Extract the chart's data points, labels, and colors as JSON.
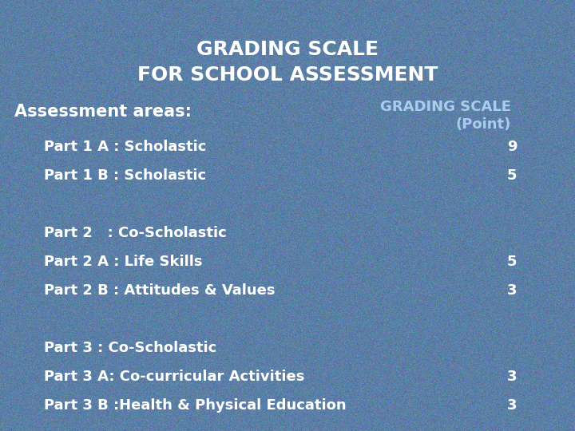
{
  "title_line1": "GRADING SCALE",
  "title_line2": "FOR SCHOOL ASSESSMENT",
  "bg_color": "#5b7fa6",
  "text_color": "#ffffff",
  "header_left": "Assessment areas:",
  "header_right_line1": "GRADING SCALE",
  "header_right_line2": "(Point)",
  "rows": [
    {
      "label": "Part 1 A : Scholastic",
      "value": "9"
    },
    {
      "label": "Part 1 B : Scholastic",
      "value": "5"
    },
    {
      "label": "",
      "value": ""
    },
    {
      "label": "Part 2   : Co-Scholastic",
      "value": ""
    },
    {
      "label": "Part 2 A : Life Skills",
      "value": "5"
    },
    {
      "label": "Part 2 B : Attitudes & Values",
      "value": "3"
    },
    {
      "label": "",
      "value": ""
    },
    {
      "label": "Part 3 : Co-Scholastic",
      "value": ""
    },
    {
      "label": "Part 3 A: Co-curricular Activities",
      "value": "3"
    },
    {
      "label": "Part 3 B :Health & Physical Education",
      "value": "3"
    }
  ],
  "title_fontsize": 18,
  "header_fontsize": 14,
  "row_fontsize": 13,
  "bg_rgb": [
    0.357,
    0.498,
    0.651
  ]
}
